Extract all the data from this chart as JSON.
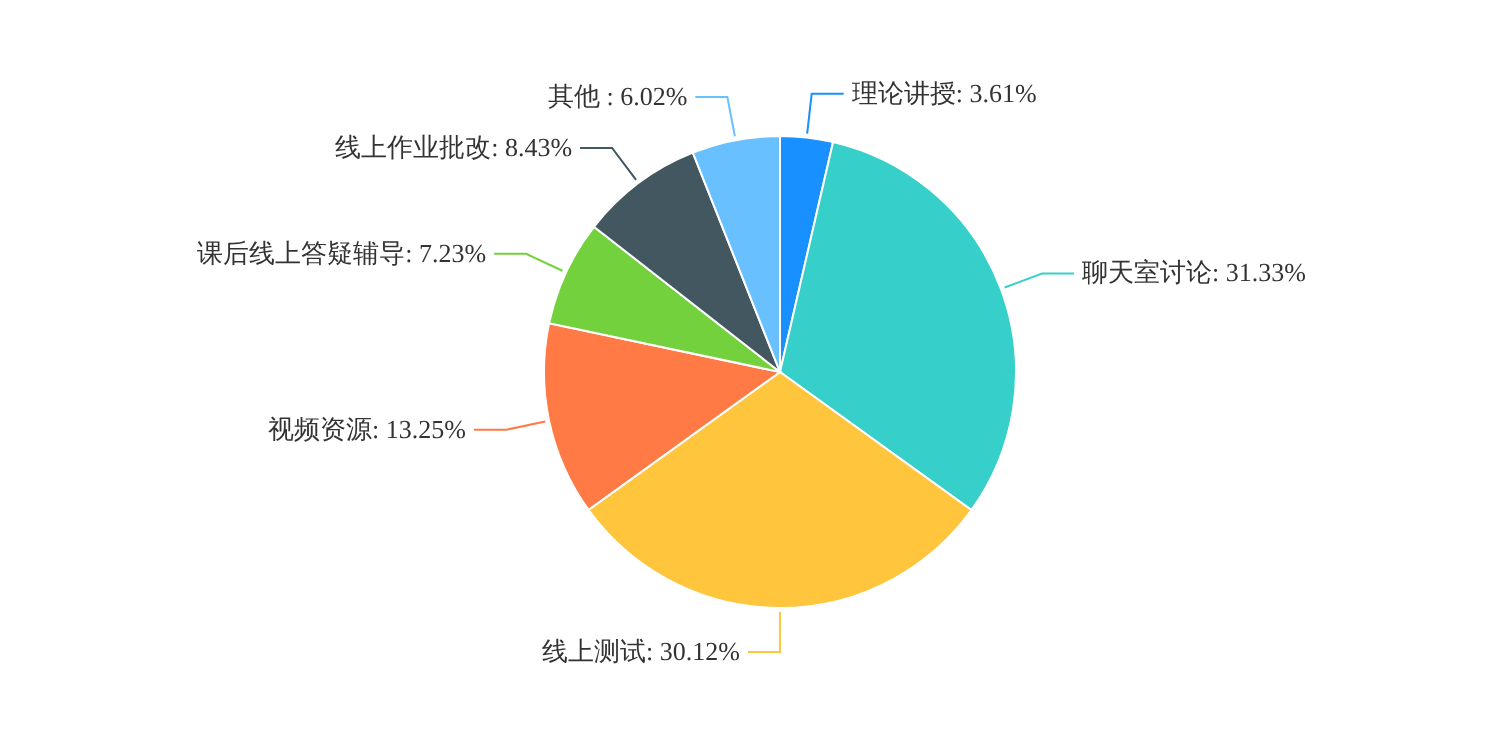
{
  "chart_data": {
    "type": "pie",
    "categories": [
      "理论讲授",
      "聊天室讨论",
      "线上测试",
      "视频资源",
      "课后线上答疑辅导",
      "线上作业批改",
      "其他"
    ],
    "values": [
      3.61,
      31.33,
      30.12,
      13.25,
      7.23,
      8.43,
      6.02
    ],
    "colors": [
      "#1890ff",
      "#36cfc9",
      "#ffc53d",
      "#ff7a45",
      "#73d13d",
      "#435761",
      "#69c0ff"
    ],
    "value_labels": [
      ": 3.61%",
      ": 31.33%",
      ": 30.12%",
      ": 13.25%",
      ": 7.23%",
      ": 8.43%",
      " : 6.02%"
    ]
  }
}
